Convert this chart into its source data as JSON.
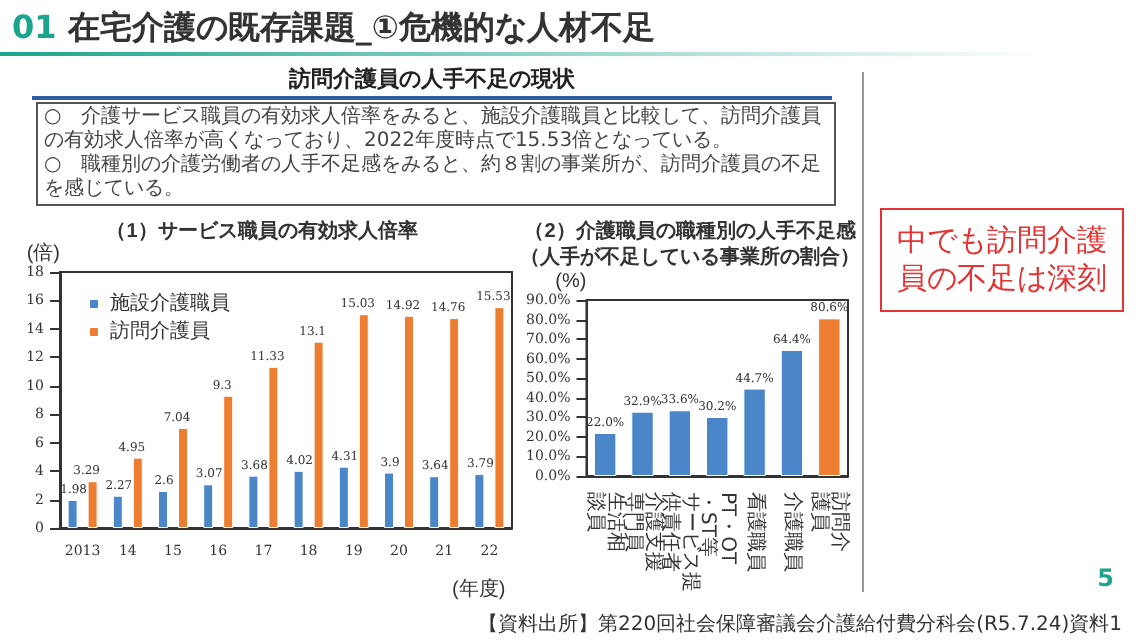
{
  "chart_data": [
    {
      "type": "bar",
      "title": "（1）サービス職員の有効求人倍率",
      "xlabel": "(年度)",
      "ylabel": "(倍)",
      "categories": [
        "2013",
        "14",
        "15",
        "16",
        "17",
        "18",
        "19",
        "20",
        "21",
        "22"
      ],
      "series": [
        {
          "name": "施設介護職員",
          "color": "#4a86c8",
          "values": [
            1.98,
            2.27,
            2.6,
            3.07,
            3.68,
            4.02,
            4.31,
            3.9,
            3.64,
            3.79
          ]
        },
        {
          "name": "訪問介護員",
          "color": "#ed7d31",
          "values": [
            3.29,
            4.95,
            7.04,
            9.3,
            11.33,
            13.1,
            15.03,
            14.92,
            14.76,
            15.53
          ]
        }
      ],
      "ylim": [
        0,
        18
      ],
      "yticks": [
        0,
        2,
        4,
        6,
        8,
        10,
        12,
        14,
        16,
        18
      ],
      "data_labels": true,
      "legend": "top left",
      "grid": false
    },
    {
      "type": "bar",
      "title": "（2）介護職員の職種別の人手不足感",
      "subtitle": "（人手が不足している事業所の割合）",
      "ylabel": "(%)",
      "categories": [
        "生活相談員",
        "介護支援専門員",
        "サービス提供責任者",
        "PT・OT・ST等",
        "看護職員",
        "介護職員",
        "訪問介護員"
      ],
      "values": [
        22.0,
        32.9,
        33.6,
        30.2,
        44.7,
        64.4,
        80.6
      ],
      "colors": [
        "#4a86c8",
        "#4a86c8",
        "#4a86c8",
        "#4a86c8",
        "#4a86c8",
        "#4a86c8",
        "#ed7d31"
      ],
      "value_labels": [
        "22.0%",
        "32.9%",
        "33.6%",
        "30.2%",
        "44.7%",
        "64.4%",
        "80.6%"
      ],
      "ylim": [
        0,
        90
      ],
      "yticks": [
        {
          "value": 0,
          "label": "0.0%"
        },
        {
          "value": 10,
          "label": "10.0%"
        },
        {
          "value": 20,
          "label": "20.0%"
        },
        {
          "value": 30,
          "label": "30.0%"
        },
        {
          "value": 40,
          "label": "40.0%"
        },
        {
          "value": 50,
          "label": "50.0%"
        },
        {
          "value": 60,
          "label": "60.0%"
        },
        {
          "value": 70,
          "label": "70.0%"
        },
        {
          "value": 80,
          "label": "80.0%"
        },
        {
          "value": 90,
          "label": "90.0%"
        }
      ],
      "grid": false
    },
    {
      "type": "other",
      "title": "01 在宅介護の既存課題_①危機的な人材不足",
      "subtitle": "訪問介護員の人手不足の現状",
      "annotations": [
        "○　介護サービス職員の有効求人倍率をみると、施設介護職員と比較して、訪問介護員の有効求人倍率が高くなっており、2022年度時点で15.53倍となっている。",
        "○　職種別の介護労働者の人手不足感をみると、約８割の事業所が、訪問介護員の不足を感じている。",
        "中でも訪問介護員の不足は深刻",
        "【資料出所】第220回社会保障審議会介護給付費分科会(R5.7.24)資料1",
        "5"
      ]
    }
  ]
}
